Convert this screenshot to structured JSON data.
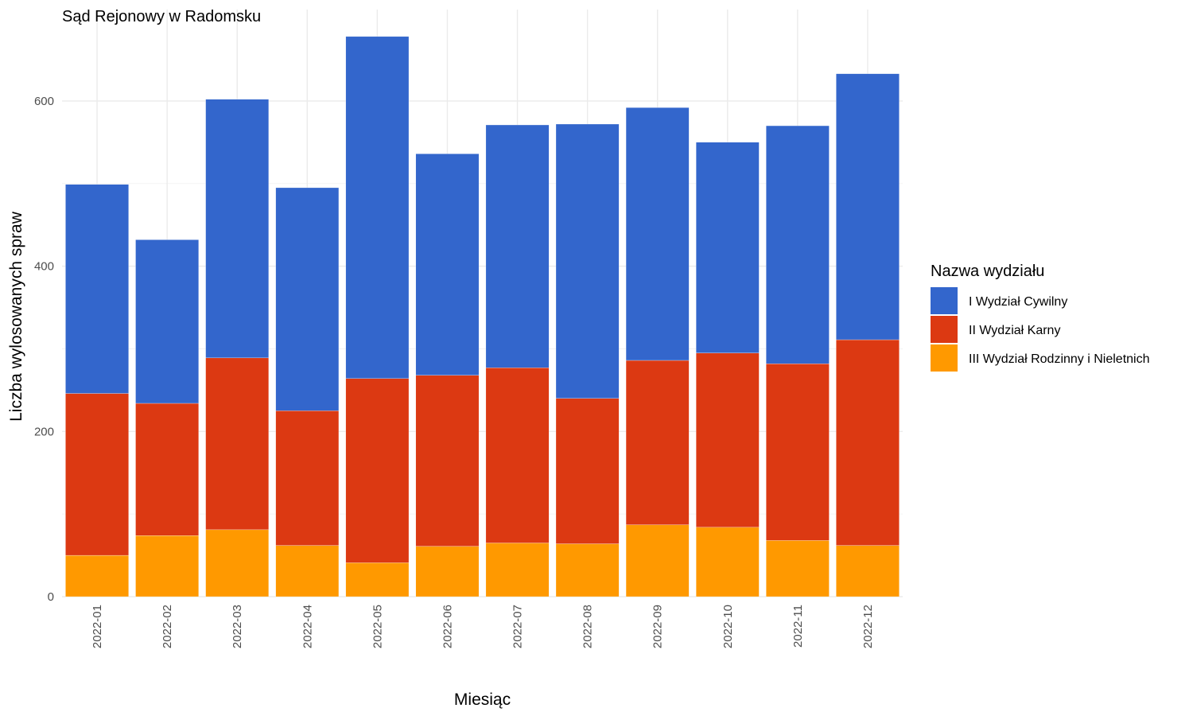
{
  "chart_data": {
    "type": "bar",
    "stacked": true,
    "title": "Sąd Rejonowy w Radomsku",
    "xlabel": "Miesiąc",
    "ylabel": "Liczba wylosowanych spraw",
    "ylim": [
      0,
      690
    ],
    "yticks": [
      0,
      200,
      400,
      600
    ],
    "grid": true,
    "legend_title": "Nazwa wydziału",
    "legend_position": "right",
    "categories": [
      "2022-01",
      "2022-02",
      "2022-03",
      "2022-04",
      "2022-05",
      "2022-06",
      "2022-07",
      "2022-08",
      "2022-09",
      "2022-10",
      "2022-11",
      "2022-12"
    ],
    "series": [
      {
        "name": "III Wydział Rodzinny i Nieletnich",
        "color": "#ff9900",
        "values": [
          50,
          74,
          81,
          62,
          41,
          61,
          65,
          64,
          87,
          84,
          68,
          62
        ]
      },
      {
        "name": "II Wydział Karny",
        "color": "#dc3912",
        "values": [
          196,
          160,
          208,
          163,
          223,
          207,
          212,
          176,
          199,
          211,
          214,
          249
        ]
      },
      {
        "name": "I Wydział Cywilny",
        "color": "#3366cc",
        "values": [
          253,
          198,
          313,
          270,
          414,
          268,
          294,
          332,
          306,
          255,
          288,
          322
        ]
      }
    ],
    "legend_order": [
      "I Wydział Cywilny",
      "II Wydział Karny",
      "III Wydział Rodzinny i Nieletnich"
    ]
  }
}
